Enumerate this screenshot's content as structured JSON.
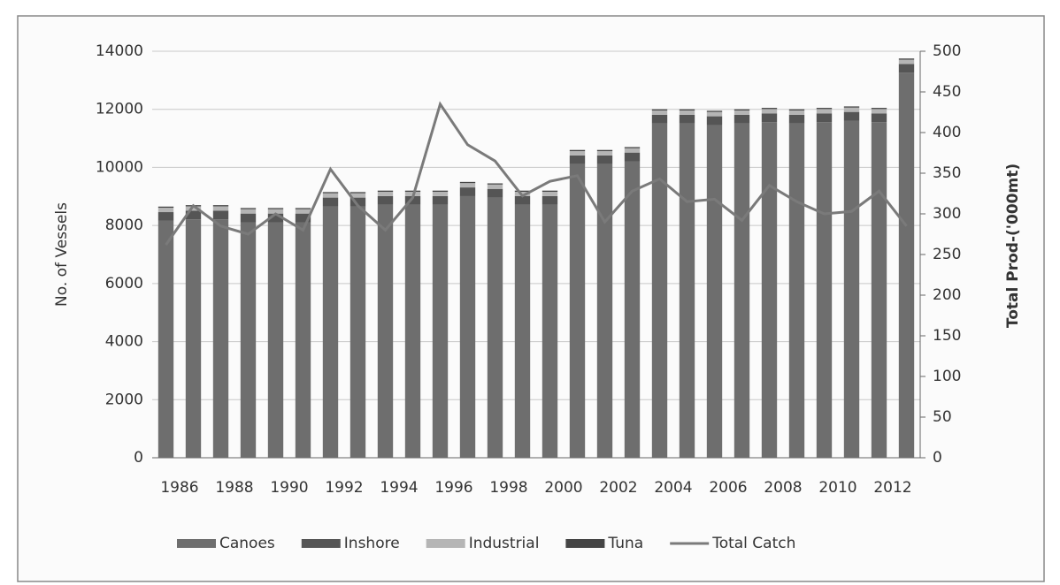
{
  "chart_data": {
    "type": "bar",
    "ylabel": "No. of Vessels",
    "y2label": "Total Prod-('000mt)",
    "categories": [
      "1986",
      null,
      "1988",
      null,
      "1990",
      null,
      "1992",
      null,
      "1994",
      null,
      "1996",
      null,
      "1998",
      null,
      "2000",
      null,
      "2002",
      null,
      "2004",
      null,
      "2006",
      null,
      "2008",
      null,
      "2010",
      null,
      "2012",
      null
    ],
    "stacked": true,
    "series": [
      {
        "name": "Canoes",
        "color": "#6e6e6e",
        "values": [
          8160,
          8210,
          8210,
          8110,
          8110,
          8110,
          8660,
          8660,
          8710,
          8710,
          8710,
          9010,
          8960,
          8710,
          8710,
          10110,
          10110,
          10210,
          11510,
          11510,
          11460,
          11510,
          11560,
          11510,
          11560,
          11610,
          11560,
          13260
        ]
      },
      {
        "name": "Inshore",
        "color": "#555555",
        "values": [
          300,
          300,
          300,
          300,
          300,
          300,
          300,
          300,
          300,
          300,
          300,
          300,
          300,
          300,
          300,
          300,
          300,
          300,
          300,
          300,
          300,
          300,
          300,
          300,
          300,
          300,
          300,
          300
        ]
      },
      {
        "name": "Industrial",
        "color": "#b5b5b5",
        "values": [
          150,
          150,
          150,
          150,
          150,
          150,
          150,
          150,
          150,
          150,
          150,
          150,
          150,
          150,
          150,
          150,
          150,
          150,
          150,
          150,
          150,
          150,
          150,
          150,
          150,
          150,
          150,
          150
        ]
      },
      {
        "name": "Tuna",
        "color": "#444444",
        "values": [
          40,
          40,
          40,
          40,
          40,
          40,
          40,
          40,
          40,
          40,
          40,
          40,
          40,
          40,
          40,
          40,
          40,
          40,
          40,
          40,
          40,
          40,
          40,
          40,
          40,
          40,
          40,
          40
        ]
      },
      {
        "name": "Total Catch",
        "color": "#7a7a7a",
        "type": "line",
        "axis": "y2",
        "values": [
          262,
          310,
          285,
          275,
          300,
          280,
          355,
          310,
          280,
          320,
          435,
          385,
          365,
          322,
          340,
          347,
          290,
          328,
          343,
          315,
          318,
          292,
          335,
          315,
          300,
          303,
          328,
          285
        ]
      }
    ],
    "ylim": [
      0,
      14000
    ],
    "yticks": [
      0,
      2000,
      4000,
      6000,
      8000,
      10000,
      12000,
      14000
    ],
    "y2lim": [
      0,
      500
    ],
    "y2ticks": [
      0,
      50,
      100,
      150,
      200,
      250,
      300,
      350,
      400,
      450,
      500
    ],
    "grid": true,
    "legend": "bottom"
  }
}
